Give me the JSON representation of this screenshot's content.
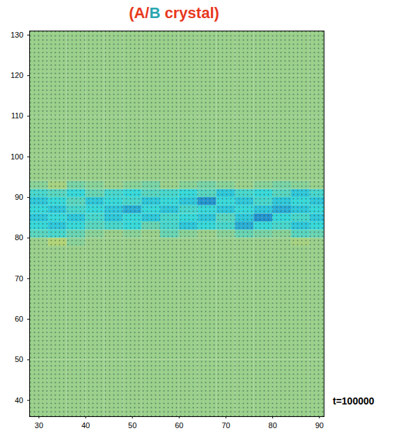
{
  "chart_data": {
    "type": "heatmap",
    "title": "(A/B crystal)",
    "annotation": "t=100000",
    "xlim": [
      28,
      91
    ],
    "ylim": [
      36,
      131
    ],
    "xticks": [
      30,
      40,
      50,
      60,
      70,
      80,
      90
    ],
    "yticks": [
      40,
      50,
      60,
      70,
      80,
      90,
      100,
      110,
      120,
      130
    ],
    "x_edges": [
      28,
      32,
      36,
      40,
      44,
      48,
      52,
      56,
      60,
      64,
      68,
      72,
      76,
      80,
      84,
      88,
      91
    ],
    "y_edges": [
      36,
      50,
      60,
      70,
      78,
      80,
      82,
      84,
      86,
      88,
      90,
      92,
      94,
      100,
      110,
      120,
      131
    ],
    "value_range": [
      0,
      1
    ],
    "cells": [
      [
        0.65,
        0.65,
        0.65,
        0.65,
        0.65,
        0.65,
        0.65,
        0.65,
        0.65,
        0.65,
        0.65,
        0.65,
        0.65,
        0.65,
        0.65,
        0.65
      ],
      [
        0.65,
        0.65,
        0.65,
        0.65,
        0.65,
        0.65,
        0.65,
        0.65,
        0.65,
        0.65,
        0.65,
        0.65,
        0.65,
        0.65,
        0.65,
        0.65
      ],
      [
        0.65,
        0.65,
        0.65,
        0.65,
        0.65,
        0.65,
        0.65,
        0.65,
        0.65,
        0.65,
        0.65,
        0.65,
        0.65,
        0.65,
        0.65,
        0.65
      ],
      [
        0.65,
        0.65,
        0.65,
        0.65,
        0.65,
        0.65,
        0.65,
        0.65,
        0.65,
        0.65,
        0.65,
        0.65,
        0.65,
        0.65,
        0.65,
        0.65
      ],
      [
        0.65,
        0.75,
        0.6,
        0.65,
        0.65,
        0.65,
        0.65,
        0.65,
        0.65,
        0.65,
        0.65,
        0.65,
        0.65,
        0.65,
        0.7,
        0.65
      ],
      [
        0.45,
        0.4,
        0.5,
        0.6,
        0.65,
        0.6,
        0.65,
        0.5,
        0.6,
        0.65,
        0.6,
        0.5,
        0.55,
        0.6,
        0.45,
        0.5
      ],
      [
        0.35,
        0.3,
        0.35,
        0.45,
        0.4,
        0.35,
        0.5,
        0.4,
        0.3,
        0.35,
        0.4,
        0.25,
        0.35,
        0.4,
        0.3,
        0.35
      ],
      [
        0.3,
        0.35,
        0.3,
        0.4,
        0.3,
        0.35,
        0.3,
        0.4,
        0.35,
        0.3,
        0.45,
        0.3,
        0.2,
        0.35,
        0.4,
        0.3
      ],
      [
        0.35,
        0.3,
        0.4,
        0.35,
        0.3,
        0.25,
        0.35,
        0.3,
        0.4,
        0.35,
        0.3,
        0.35,
        0.3,
        0.25,
        0.3,
        0.35
      ],
      [
        0.3,
        0.35,
        0.45,
        0.3,
        0.35,
        0.4,
        0.3,
        0.35,
        0.3,
        0.2,
        0.35,
        0.3,
        0.4,
        0.3,
        0.35,
        0.3
      ],
      [
        0.4,
        0.45,
        0.35,
        0.5,
        0.4,
        0.35,
        0.45,
        0.4,
        0.35,
        0.45,
        0.3,
        0.4,
        0.35,
        0.45,
        0.3,
        0.4
      ],
      [
        0.6,
        0.7,
        0.55,
        0.6,
        0.65,
        0.6,
        0.55,
        0.65,
        0.6,
        0.55,
        0.6,
        0.65,
        0.6,
        0.55,
        0.6,
        0.65
      ],
      [
        0.65,
        0.65,
        0.65,
        0.65,
        0.65,
        0.65,
        0.65,
        0.65,
        0.65,
        0.65,
        0.65,
        0.65,
        0.65,
        0.65,
        0.65,
        0.65
      ],
      [
        0.65,
        0.65,
        0.65,
        0.65,
        0.65,
        0.65,
        0.65,
        0.65,
        0.65,
        0.65,
        0.65,
        0.65,
        0.65,
        0.65,
        0.65,
        0.65
      ],
      [
        0.65,
        0.65,
        0.65,
        0.65,
        0.65,
        0.65,
        0.65,
        0.65,
        0.65,
        0.65,
        0.65,
        0.65,
        0.65,
        0.65,
        0.65,
        0.65
      ],
      [
        0.65,
        0.65,
        0.65,
        0.65,
        0.65,
        0.65,
        0.65,
        0.65,
        0.65,
        0.65,
        0.65,
        0.65,
        0.65,
        0.65,
        0.65,
        0.65
      ]
    ]
  }
}
